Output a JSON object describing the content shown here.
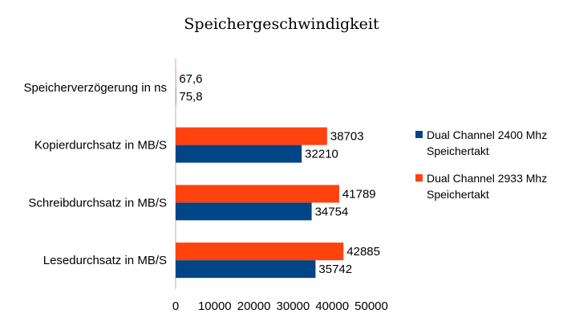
{
  "chart_data": {
    "type": "bar",
    "orientation": "horizontal",
    "title": "Speichergeschwindigkeit",
    "categories": [
      "Speicherverzögerung in ns",
      "Kopierdurchsatz in MB/S",
      "Schreibdurchsatz in MB/S",
      "Lesedurchsatz in MB/S"
    ],
    "series": [
      {
        "name": "Dual Channel 2933 Mhz Speichertakt",
        "legend_lines": [
          "Dual Channel 2933 Mhz",
          "Speichertakt"
        ],
        "color": "#ff420e",
        "values": [
          67.6,
          38703,
          41789,
          42885
        ],
        "value_labels": [
          "67,6",
          "38703",
          "41789",
          "42885"
        ]
      },
      {
        "name": "Dual Channel 2400 Mhz Speichertakt",
        "legend_lines": [
          "Dual Channel 2400 Mhz",
          "Speichertakt"
        ],
        "color": "#004586",
        "values": [
          75.8,
          32210,
          34754,
          35742
        ],
        "value_labels": [
          "75,8",
          "32210",
          "34754",
          "35742"
        ]
      }
    ],
    "legend_order": [
      1,
      0
    ],
    "xlim": [
      0,
      50000
    ],
    "xticks": [
      0,
      10000,
      20000,
      30000,
      40000,
      50000
    ],
    "xtick_labels": [
      "0",
      "10000",
      "20000",
      "30000",
      "40000",
      "50000"
    ],
    "grid": false,
    "legend_position": "right"
  }
}
